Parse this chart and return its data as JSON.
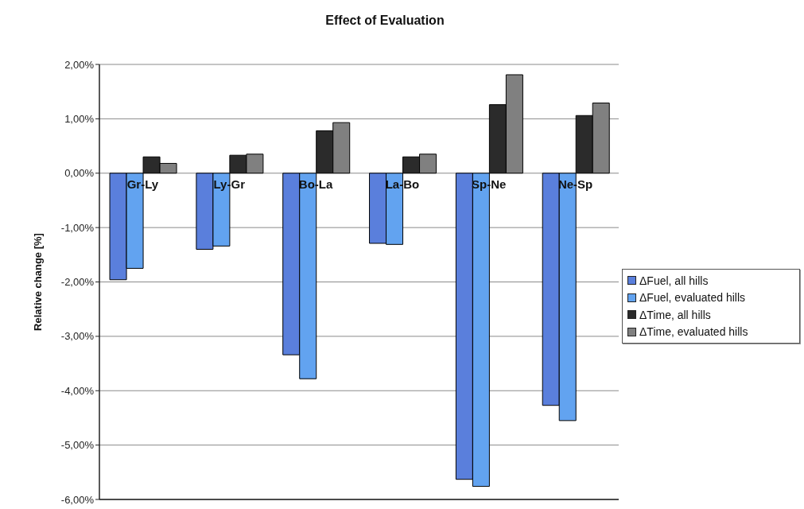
{
  "chart_data": {
    "type": "bar",
    "title": "Effect of Evaluation",
    "ylabel": "Relative change [%]",
    "categories": [
      "Gr-Ly",
      "Ly-Gr",
      "Bo-La",
      "La-Bo",
      "Sp-Ne",
      "Ne-Sp"
    ],
    "series": [
      {
        "name": "ΔFuel, all hills",
        "color": "#5a7fdc",
        "values": [
          -1.96,
          -1.4,
          -3.34,
          -1.29,
          -5.63,
          -4.27
        ]
      },
      {
        "name": "ΔFuel, evaluated hills",
        "color": "#62a3f0",
        "values": [
          -1.75,
          -1.34,
          -3.78,
          -1.31,
          -5.76,
          -4.55
        ]
      },
      {
        "name": "ΔTime, all hills",
        "color": "#2b2b2b",
        "values": [
          0.3,
          0.33,
          0.78,
          0.3,
          1.26,
          1.06
        ]
      },
      {
        "name": "ΔTime, evaluated hills",
        "color": "#808080",
        "values": [
          0.18,
          0.35,
          0.93,
          0.35,
          1.81,
          1.29
        ]
      }
    ],
    "ylim": [
      -6,
      2
    ],
    "yticks": [
      {
        "value": -6,
        "label": "-6,00%"
      },
      {
        "value": -5,
        "label": "-5,00%"
      },
      {
        "value": -4,
        "label": "-4,00%"
      },
      {
        "value": -3,
        "label": "-3,00%"
      },
      {
        "value": -2,
        "label": "-2,00%"
      },
      {
        "value": -1,
        "label": "-1,00%"
      },
      {
        "value": 0,
        "label": "0,00%"
      },
      {
        "value": 1,
        "label": "1,00%"
      },
      {
        "value": 2,
        "label": "2,00%"
      }
    ],
    "grid": "y",
    "legend": "right"
  }
}
